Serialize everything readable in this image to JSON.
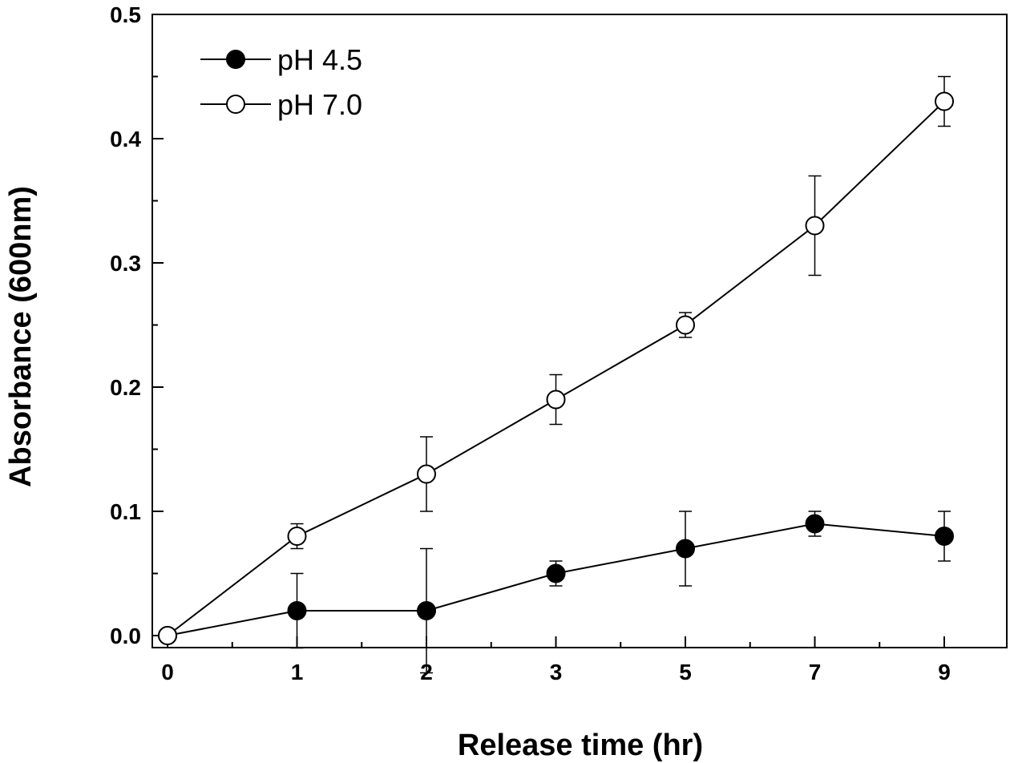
{
  "chart_data": {
    "type": "line",
    "x_categories": [
      "0",
      "1",
      "2",
      "3",
      "5",
      "7",
      "9"
    ],
    "xlabel": "Release time (hr)",
    "ylabel": "Absorbance (600nm)",
    "ylim": [
      0,
      0.5
    ],
    "yticks": [
      "0.0",
      "0.1",
      "0.2",
      "0.3",
      "0.4",
      "0.5"
    ],
    "grid": false,
    "legend_position": "top-left",
    "series": [
      {
        "name": "pH 4.5",
        "marker": "filled-circle",
        "color": "#000000",
        "values": [
          0.0,
          0.02,
          0.02,
          0.05,
          0.07,
          0.09,
          0.08
        ],
        "errors": [
          0.0,
          0.03,
          0.05,
          0.01,
          0.03,
          0.01,
          0.02
        ]
      },
      {
        "name": "pH 7.0",
        "marker": "open-circle",
        "color": "#000000",
        "values": [
          0.0,
          0.08,
          0.13,
          0.19,
          0.25,
          0.33,
          0.43
        ],
        "errors": [
          0.0,
          0.01,
          0.03,
          0.02,
          0.01,
          0.04,
          0.02
        ]
      }
    ]
  }
}
